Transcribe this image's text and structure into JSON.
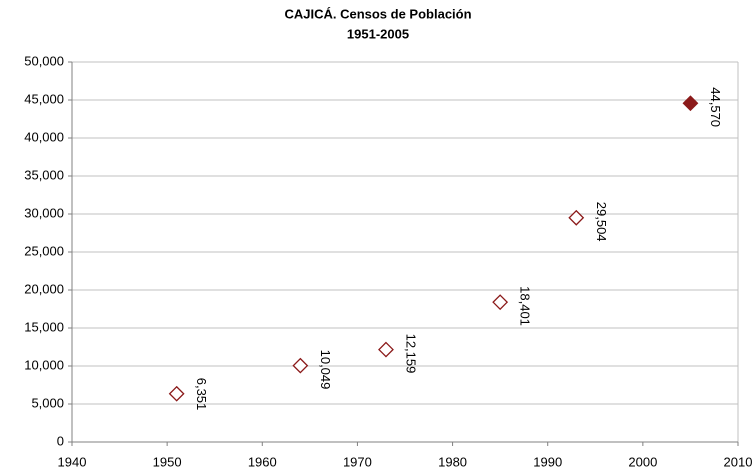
{
  "chart_data": {
    "type": "scatter",
    "title": "CAJICÁ. Censos de Población",
    "subtitle": "1951-2005",
    "series": [
      {
        "color": "#8b1a1a",
        "x": [
          1951,
          1964,
          1973,
          1985,
          1993,
          2005
        ],
        "values": [
          6351,
          10049,
          12159,
          18401,
          29504,
          44570
        ],
        "value_labels": [
          "6,351",
          "10,049",
          "12,159",
          "18,401",
          "29,504",
          "44,570"
        ],
        "filled": [
          false,
          false,
          false,
          false,
          false,
          true
        ]
      }
    ],
    "xlim": [
      1940,
      2010
    ],
    "xticks": [
      1940,
      1950,
      1960,
      1970,
      1980,
      1990,
      2000,
      2010
    ],
    "ylim": [
      0,
      50000
    ],
    "yticks": [
      0,
      {
        "value": 5000,
        "label": "5,000"
      },
      {
        "value": 10000,
        "label": "10,000"
      },
      {
        "value": 15000,
        "label": "15,000"
      },
      {
        "value": 20000,
        "label": "20,000"
      },
      {
        "value": 25000,
        "label": "25,000"
      },
      {
        "value": 30000,
        "label": "30,000"
      },
      {
        "value": 35000,
        "label": "35,000"
      },
      {
        "value": 40000,
        "label": "40,000"
      },
      {
        "value": 45000,
        "label": "45,000"
      },
      {
        "value": 50000,
        "label": "50,000"
      }
    ],
    "grid": true
  }
}
